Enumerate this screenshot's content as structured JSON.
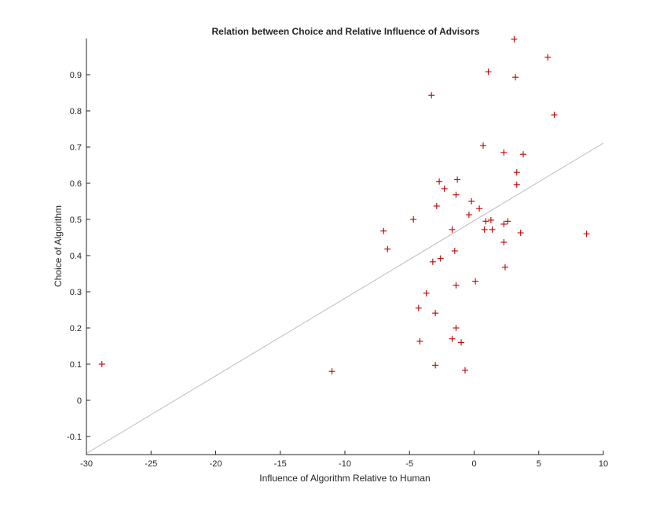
{
  "chart_data": {
    "type": "scatter",
    "title": "Relation between Choice and Relative Influence of Advisors",
    "xlabel": "Influence of Algorithm Relative to Human",
    "ylabel": "Choice of Algorithm",
    "xlim": [
      -30,
      10
    ],
    "ylim": [
      -0.15,
      1.0
    ],
    "xticks": [
      -30,
      -25,
      -20,
      -15,
      -10,
      -5,
      0,
      5,
      10
    ],
    "yticks": [
      -0.1,
      0,
      0.1,
      0.2,
      0.3,
      0.4,
      0.5,
      0.6,
      0.7,
      0.8,
      0.9
    ],
    "marker_color": "#c00000",
    "fit_line_color": "#bdbdbd",
    "grid": false,
    "fit_line": {
      "x": [
        -30,
        10
      ],
      "y": [
        -0.147,
        0.711
      ]
    },
    "points": [
      {
        "x": -28.8,
        "y": 0.1
      },
      {
        "x": -11.0,
        "y": 0.08
      },
      {
        "x": -7.0,
        "y": 0.468
      },
      {
        "x": -6.7,
        "y": 0.418
      },
      {
        "x": -4.7,
        "y": 0.5
      },
      {
        "x": -4.3,
        "y": 0.255
      },
      {
        "x": -4.2,
        "y": 0.163
      },
      {
        "x": -3.7,
        "y": 0.296
      },
      {
        "x": -3.3,
        "y": 0.843
      },
      {
        "x": -3.2,
        "y": 0.383
      },
      {
        "x": -3.0,
        "y": 0.097
      },
      {
        "x": -3.0,
        "y": 0.241
      },
      {
        "x": -2.9,
        "y": 0.537
      },
      {
        "x": -2.7,
        "y": 0.605
      },
      {
        "x": -2.6,
        "y": 0.392
      },
      {
        "x": -2.3,
        "y": 0.585
      },
      {
        "x": -1.7,
        "y": 0.17
      },
      {
        "x": -1.7,
        "y": 0.472
      },
      {
        "x": -1.5,
        "y": 0.413
      },
      {
        "x": -1.4,
        "y": 0.568
      },
      {
        "x": -1.4,
        "y": 0.318
      },
      {
        "x": -1.4,
        "y": 0.2
      },
      {
        "x": -1.3,
        "y": 0.61
      },
      {
        "x": -1.0,
        "y": 0.16
      },
      {
        "x": -0.7,
        "y": 0.083
      },
      {
        "x": -0.4,
        "y": 0.513
      },
      {
        "x": -0.2,
        "y": 0.55
      },
      {
        "x": 0.1,
        "y": 0.329
      },
      {
        "x": 0.4,
        "y": 0.53
      },
      {
        "x": 0.7,
        "y": 0.704
      },
      {
        "x": 0.8,
        "y": 0.472
      },
      {
        "x": 0.9,
        "y": 0.495
      },
      {
        "x": 1.1,
        "y": 0.908
      },
      {
        "x": 1.3,
        "y": 0.498
      },
      {
        "x": 1.4,
        "y": 0.472
      },
      {
        "x": 2.3,
        "y": 0.685
      },
      {
        "x": 2.3,
        "y": 0.487
      },
      {
        "x": 2.3,
        "y": 0.437
      },
      {
        "x": 2.4,
        "y": 0.368
      },
      {
        "x": 2.6,
        "y": 0.495
      },
      {
        "x": 3.1,
        "y": 0.998
      },
      {
        "x": 3.2,
        "y": 0.893
      },
      {
        "x": 3.3,
        "y": 0.63
      },
      {
        "x": 3.3,
        "y": 0.596
      },
      {
        "x": 3.6,
        "y": 0.463
      },
      {
        "x": 3.8,
        "y": 0.68
      },
      {
        "x": 5.7,
        "y": 0.948
      },
      {
        "x": 6.2,
        "y": 0.789
      },
      {
        "x": 8.7,
        "y": 0.46
      }
    ]
  }
}
